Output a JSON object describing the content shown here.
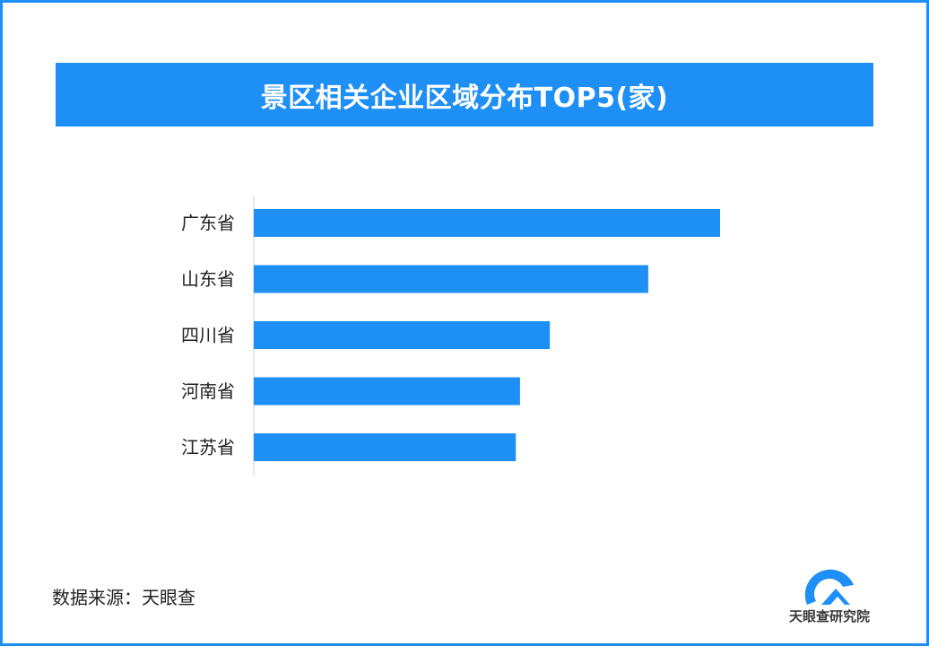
{
  "title": "景区相关企业区域分布TOP5(家)",
  "source": "数据来源：天眼查",
  "logo_text": "天眼查研究院",
  "colors": {
    "accent": "#1e8ff5",
    "bar": "#1e8ff5",
    "axis": "#cccccc"
  },
  "chart_data": {
    "type": "bar",
    "orientation": "horizontal",
    "categories": [
      "广东省",
      "山东省",
      "四川省",
      "河南省",
      "江苏省"
    ],
    "values": [
      100,
      84.6,
      63.5,
      57.1,
      56.2
    ],
    "xlim": [
      0,
      125
    ],
    "xlabel": "",
    "ylabel": "",
    "grid": false,
    "legend": "none"
  }
}
